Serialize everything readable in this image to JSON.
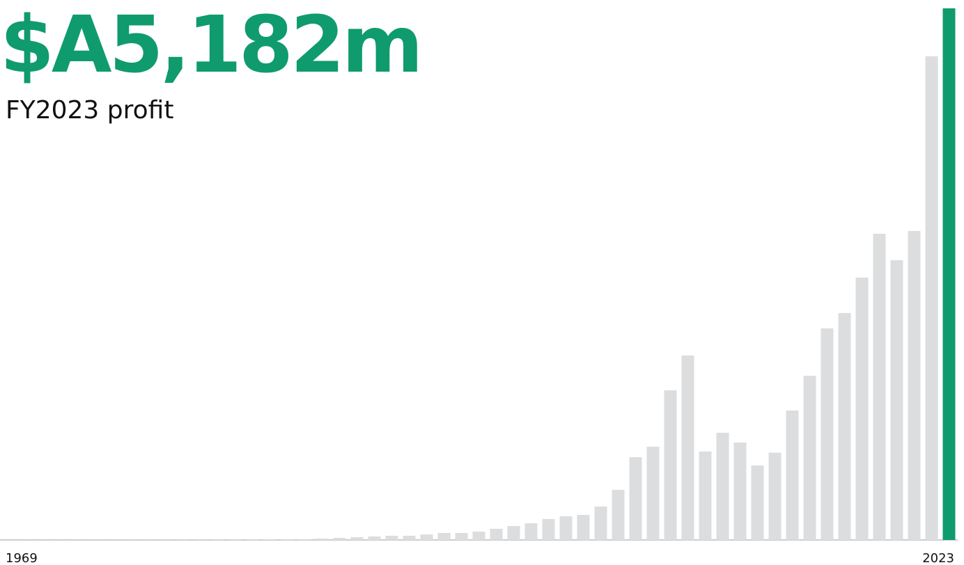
{
  "chart_data": {
    "type": "bar",
    "title": "$A5,182m",
    "subtitle": "FY2023 profit",
    "categories": [
      "1969",
      null,
      null,
      null,
      null,
      null,
      null,
      null,
      null,
      null,
      null,
      null,
      null,
      null,
      null,
      null,
      null,
      null,
      null,
      null,
      null,
      null,
      null,
      null,
      null,
      null,
      null,
      null,
      null,
      null,
      null,
      null,
      null,
      null,
      null,
      null,
      null,
      null,
      null,
      null,
      null,
      null,
      null,
      null,
      null,
      null,
      null,
      null,
      null,
      null,
      null,
      null,
      null,
      null,
      "2023"
    ],
    "values": [
      0.3,
      0.4,
      0.5,
      0.6,
      0.7,
      0.8,
      1,
      1.2,
      1.4,
      1.6,
      1.8,
      2,
      2.3,
      2.6,
      3,
      3.5,
      4,
      7,
      14,
      20,
      27,
      34,
      41,
      41,
      54,
      68,
      68,
      81,
      109,
      136,
      163,
      204,
      231,
      244,
      326,
      488,
      807,
      909,
      1459,
      1798,
      862,
      1045,
      950,
      726,
      851,
      1262,
      1601,
      2062,
      2212,
      2557,
      2985,
      2727,
      3012,
      4715,
      5182
    ],
    "colors": [
      "#dcdddf",
      "#dcdddf",
      "#dcdddf",
      "#dcdddf",
      "#dcdddf",
      "#dcdddf",
      "#dcdddf",
      "#dcdddf",
      "#dcdddf",
      "#dcdddf",
      "#dcdddf",
      "#dcdddf",
      "#dcdddf",
      "#dcdddf",
      "#dcdddf",
      "#dcdddf",
      "#dcdddf",
      "#dcdddf",
      "#dcdddf",
      "#dcdddf",
      "#dcdddf",
      "#dcdddf",
      "#dcdddf",
      "#dcdddf",
      "#dcdddf",
      "#dcdddf",
      "#dcdddf",
      "#dcdddf",
      "#dcdddf",
      "#dcdddf",
      "#dcdddf",
      "#dcdddf",
      "#dcdddf",
      "#dcdddf",
      "#dcdddf",
      "#dcdddf",
      "#dcdddf",
      "#dcdddf",
      "#dcdddf",
      "#dcdddf",
      "#dcdddf",
      "#dcdddf",
      "#dcdddf",
      "#dcdddf",
      "#dcdddf",
      "#dcdddf",
      "#dcdddf",
      "#dcdddf",
      "#dcdddf",
      "#dcdddf",
      "#dcdddf",
      "#dcdddf",
      "#dcdddf",
      "#dcdddf",
      "#0f9b6e"
    ],
    "title_color": "#0f9b6e",
    "ylim": [
      0,
      5182
    ]
  }
}
